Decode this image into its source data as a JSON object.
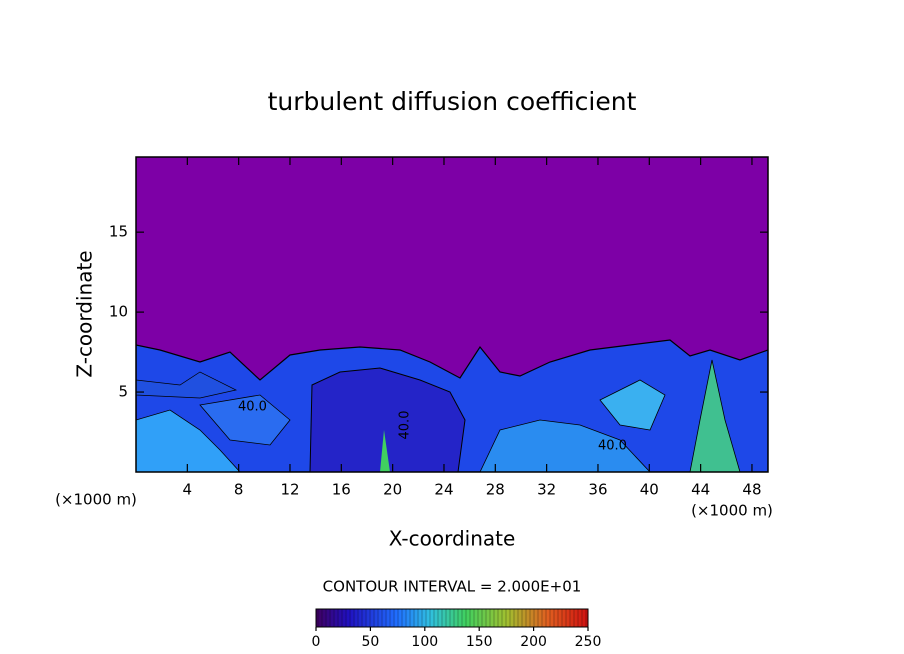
{
  "chart_data": {
    "type": "contour",
    "title": "turbulent diffusion coefficient",
    "x_label": "X-coordinate",
    "y_label": "Z-coordinate",
    "x_unit": "(×1000 m)",
    "y_unit": "(×1000 m)",
    "xlim": [
      0,
      49.25
    ],
    "ylim": [
      0,
      19.7
    ],
    "xticks": [
      4,
      8,
      12,
      16,
      20,
      24,
      28,
      32,
      36,
      40,
      44,
      48
    ],
    "yticks": [
      5,
      10,
      15
    ],
    "contour_interval": "CONTOUR INTERVAL = 2.000E+01",
    "contour_labels": [
      "40.0",
      "40.0",
      "40.0"
    ],
    "colorbar": {
      "clim": [
        0,
        250
      ],
      "ticks": [
        0,
        50,
        100,
        150,
        200,
        250
      ]
    }
  }
}
